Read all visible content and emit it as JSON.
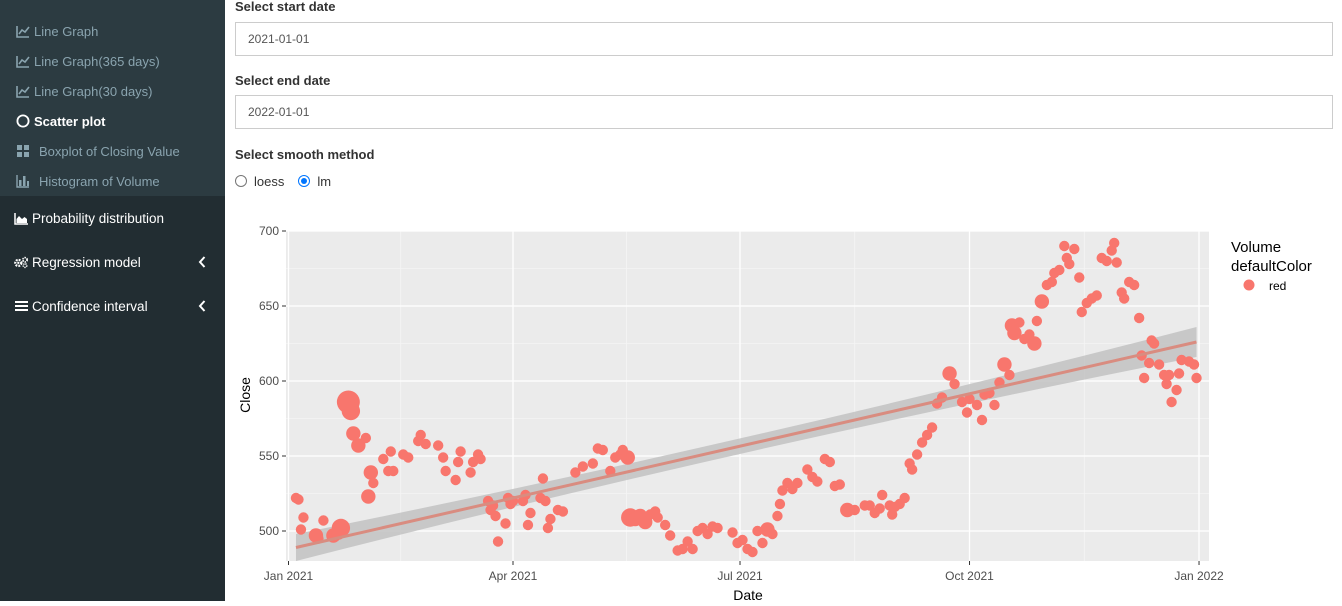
{
  "sidebar": {
    "submenu": [
      {
        "label": "Line Graph",
        "icon": "line-chart-icon"
      },
      {
        "label": "Line Graph(365 days)",
        "icon": "line-chart-icon"
      },
      {
        "label": "Line Graph(30 days)",
        "icon": "line-chart-icon"
      },
      {
        "label": "Scatter plot",
        "icon": "circle-icon",
        "active": true
      },
      {
        "label": "Boxplot of Closing Value",
        "icon": "grid-icon"
      },
      {
        "label": "Histogram of Volume",
        "icon": "bar-chart-icon"
      }
    ],
    "menu": [
      {
        "label": "Probability distribution",
        "icon": "area-chart-icon"
      },
      {
        "label": "Regression model",
        "icon": "cogs-icon"
      },
      {
        "label": "Confidence interval",
        "icon": "bars-icon"
      }
    ]
  },
  "form": {
    "start_label": "Select start date",
    "start_value": "2021-01-01",
    "end_label": "Select end date",
    "end_value": "2022-01-01",
    "smooth_label": "Select smooth method",
    "options": [
      "loess",
      "lm"
    ],
    "selected": "lm"
  },
  "colors": {
    "sidebar": "#222d32",
    "submenu": "#2c3b41",
    "point": "#f8766d",
    "fit": "#d98c80",
    "band": "#c0c0c0",
    "panel": "#ebebeb"
  },
  "chart_data": {
    "type": "scatter",
    "xlabel": "Date",
    "ylabel": "Close",
    "xlim": [
      "2020-12-31",
      "2022-01-05"
    ],
    "ylim": [
      480,
      700
    ],
    "x_ticks": [
      "2021-01-01",
      "2021-04-01",
      "2021-07-01",
      "2021-10-01",
      "2022-01-01"
    ],
    "x_tick_labels": [
      "Jan 2021",
      "Apr 2021",
      "Jul 2021",
      "Oct 2021",
      "Jan 2022"
    ],
    "y_ticks": [
      500,
      550,
      600,
      650,
      700
    ],
    "legend": {
      "title": "Volume\ndefaultColor",
      "entries": [
        "red"
      ],
      "position": "right"
    },
    "smooth": {
      "method": "lm",
      "start": [
        "2021-01-04",
        489
      ],
      "end": [
        "2021-12-31",
        626
      ],
      "band_start": 9,
      "band_mid": 4,
      "band_end": 10
    },
    "series": [
      {
        "points": [
          [
            "2021-01-04",
            522,
            1
          ],
          [
            "2021-01-05",
            521,
            1
          ],
          [
            "2021-01-06",
            501,
            1
          ],
          [
            "2021-01-07",
            509,
            1
          ],
          [
            "2021-01-12",
            497,
            2
          ],
          [
            "2021-01-13",
            495,
            1
          ],
          [
            "2021-01-15",
            507,
            1
          ],
          [
            "2021-01-19",
            497,
            2
          ],
          [
            "2021-01-21",
            499,
            2
          ],
          [
            "2021-01-22",
            502,
            3
          ],
          [
            "2021-01-25",
            586,
            4
          ],
          [
            "2021-01-26",
            580,
            3
          ],
          [
            "2021-01-27",
            565,
            2
          ],
          [
            "2021-01-29",
            557,
            2
          ],
          [
            "2021-02-01",
            562,
            1
          ],
          [
            "2021-02-02",
            523,
            2
          ],
          [
            "2021-02-03",
            539,
            2
          ],
          [
            "2021-02-04",
            532,
            1
          ],
          [
            "2021-02-08",
            548,
            1
          ],
          [
            "2021-02-10",
            540,
            1
          ],
          [
            "2021-02-11",
            553,
            1
          ],
          [
            "2021-02-12",
            540,
            1
          ],
          [
            "2021-02-16",
            551,
            1
          ],
          [
            "2021-02-18",
            549,
            1
          ],
          [
            "2021-02-22",
            560,
            1
          ],
          [
            "2021-02-23",
            564,
            1
          ],
          [
            "2021-02-25",
            558,
            1
          ],
          [
            "2021-03-02",
            557,
            1
          ],
          [
            "2021-03-04",
            549,
            1
          ],
          [
            "2021-03-05",
            540,
            1
          ],
          [
            "2021-03-09",
            534,
            1
          ],
          [
            "2021-03-10",
            546,
            1
          ],
          [
            "2021-03-11",
            553,
            1
          ],
          [
            "2021-03-15",
            539,
            1
          ],
          [
            "2021-03-16",
            546,
            1
          ],
          [
            "2021-03-18",
            551,
            1
          ],
          [
            "2021-03-19",
            548,
            1
          ],
          [
            "2021-03-22",
            520,
            1
          ],
          [
            "2021-03-23",
            514,
            1
          ],
          [
            "2021-03-24",
            517,
            1
          ],
          [
            "2021-03-25",
            510,
            1
          ],
          [
            "2021-03-26",
            493,
            1
          ],
          [
            "2021-03-29",
            505,
            1
          ],
          [
            "2021-03-30",
            522,
            1
          ],
          [
            "2021-03-31",
            518,
            1
          ],
          [
            "2021-04-01",
            520,
            1
          ],
          [
            "2021-04-05",
            520,
            1
          ],
          [
            "2021-04-06",
            524,
            1
          ],
          [
            "2021-04-07",
            504,
            1
          ],
          [
            "2021-04-08",
            512,
            1
          ],
          [
            "2021-04-12",
            522,
            1
          ],
          [
            "2021-04-13",
            535,
            1
          ],
          [
            "2021-04-14",
            520,
            1
          ],
          [
            "2021-04-15",
            502,
            1
          ],
          [
            "2021-04-16",
            508,
            1
          ],
          [
            "2021-04-19",
            514,
            1
          ],
          [
            "2021-04-21",
            513,
            1
          ],
          [
            "2021-04-26",
            539,
            1
          ],
          [
            "2021-04-29",
            543,
            1
          ],
          [
            "2021-05-03",
            545,
            1
          ],
          [
            "2021-05-05",
            555,
            1
          ],
          [
            "2021-05-07",
            554,
            1
          ],
          [
            "2021-05-10",
            540,
            1
          ],
          [
            "2021-05-12",
            549,
            1
          ],
          [
            "2021-05-14",
            551,
            1
          ],
          [
            "2021-05-15",
            554,
            1
          ],
          [
            "2021-05-17",
            549,
            2
          ],
          [
            "2021-05-18",
            509,
            3
          ],
          [
            "2021-05-20",
            508,
            2
          ],
          [
            "2021-05-22",
            510,
            2
          ],
          [
            "2021-05-24",
            506,
            2
          ],
          [
            "2021-05-26",
            511,
            1
          ],
          [
            "2021-05-28",
            513,
            1
          ],
          [
            "2021-05-29",
            509,
            1
          ],
          [
            "2021-06-01",
            504,
            1
          ],
          [
            "2021-06-03",
            497,
            1
          ],
          [
            "2021-06-06",
            487,
            1
          ],
          [
            "2021-06-08",
            488,
            1
          ],
          [
            "2021-06-10",
            493,
            1
          ],
          [
            "2021-06-12",
            488,
            1
          ],
          [
            "2021-06-14",
            500,
            1
          ],
          [
            "2021-06-16",
            502,
            1
          ],
          [
            "2021-06-18",
            498,
            1
          ],
          [
            "2021-06-20",
            503,
            1
          ],
          [
            "2021-06-22",
            502,
            1
          ],
          [
            "2021-06-28",
            499,
            1
          ],
          [
            "2021-06-30",
            492,
            1
          ],
          [
            "2021-07-02",
            494,
            1
          ],
          [
            "2021-07-04",
            488,
            1
          ],
          [
            "2021-07-06",
            486,
            1
          ],
          [
            "2021-07-08",
            500,
            1
          ],
          [
            "2021-07-10",
            492,
            1
          ],
          [
            "2021-07-12",
            501,
            2
          ],
          [
            "2021-07-14",
            498,
            1
          ],
          [
            "2021-07-16",
            510,
            1
          ],
          [
            "2021-07-17",
            518,
            1
          ],
          [
            "2021-07-18",
            527,
            1
          ],
          [
            "2021-07-20",
            532,
            1
          ],
          [
            "2021-07-22",
            528,
            1
          ],
          [
            "2021-07-24",
            532,
            1
          ],
          [
            "2021-07-28",
            541,
            1
          ],
          [
            "2021-07-30",
            536,
            1
          ],
          [
            "2021-08-01",
            533,
            1
          ],
          [
            "2021-08-04",
            548,
            1
          ],
          [
            "2021-08-06",
            546,
            1
          ],
          [
            "2021-08-08",
            530,
            1
          ],
          [
            "2021-08-10",
            531,
            1
          ],
          [
            "2021-08-13",
            514,
            2
          ],
          [
            "2021-08-16",
            514,
            1
          ],
          [
            "2021-08-20",
            517,
            1
          ],
          [
            "2021-08-22",
            517,
            1
          ],
          [
            "2021-08-24",
            512,
            1
          ],
          [
            "2021-08-26",
            515,
            1
          ],
          [
            "2021-08-27",
            524,
            1
          ],
          [
            "2021-08-30",
            517,
            1
          ],
          [
            "2021-08-31",
            511,
            1
          ],
          [
            "2021-09-01",
            516,
            1
          ],
          [
            "2021-09-03",
            518,
            1
          ],
          [
            "2021-09-05",
            522,
            1
          ],
          [
            "2021-09-07",
            545,
            1
          ],
          [
            "2021-09-08",
            541,
            1
          ],
          [
            "2021-09-10",
            551,
            1
          ],
          [
            "2021-09-12",
            559,
            1
          ],
          [
            "2021-09-14",
            564,
            1
          ],
          [
            "2021-09-16",
            569,
            1
          ],
          [
            "2021-09-18",
            585,
            1
          ],
          [
            "2021-09-20",
            589,
            1
          ],
          [
            "2021-09-23",
            605,
            2
          ],
          [
            "2021-09-25",
            598,
            1
          ],
          [
            "2021-09-28",
            586,
            1
          ],
          [
            "2021-09-30",
            579,
            1
          ],
          [
            "2021-10-01",
            588,
            1
          ],
          [
            "2021-10-04",
            584,
            1
          ],
          [
            "2021-10-06",
            574,
            1
          ],
          [
            "2021-10-07",
            591,
            1
          ],
          [
            "2021-10-09",
            592,
            1
          ],
          [
            "2021-10-11",
            584,
            1
          ],
          [
            "2021-10-13",
            599,
            1
          ],
          [
            "2021-10-15",
            611,
            2
          ],
          [
            "2021-10-17",
            604,
            1
          ],
          [
            "2021-10-18",
            637,
            2
          ],
          [
            "2021-10-19",
            632,
            2
          ],
          [
            "2021-10-21",
            639,
            1
          ],
          [
            "2021-10-23",
            628,
            1
          ],
          [
            "2021-10-25",
            631,
            1
          ],
          [
            "2021-10-27",
            625,
            2
          ],
          [
            "2021-10-28",
            640,
            1
          ],
          [
            "2021-10-30",
            653,
            2
          ],
          [
            "2021-11-01",
            664,
            1
          ],
          [
            "2021-11-03",
            666,
            1
          ],
          [
            "2021-11-04",
            672,
            1
          ],
          [
            "2021-11-06",
            674,
            1
          ],
          [
            "2021-11-08",
            690,
            1
          ],
          [
            "2021-11-09",
            682,
            1
          ],
          [
            "2021-11-10",
            678,
            1
          ],
          [
            "2021-11-12",
            688,
            1
          ],
          [
            "2021-11-14",
            669,
            1
          ],
          [
            "2021-11-15",
            646,
            1
          ],
          [
            "2021-11-17",
            652,
            1
          ],
          [
            "2021-11-19",
            655,
            1
          ],
          [
            "2021-11-21",
            657,
            1
          ],
          [
            "2021-11-23",
            682,
            1
          ],
          [
            "2021-11-25",
            680,
            1
          ],
          [
            "2021-11-27",
            687,
            1
          ],
          [
            "2021-11-28",
            692,
            1
          ],
          [
            "2021-11-29",
            679,
            1
          ],
          [
            "2021-12-01",
            659,
            1
          ],
          [
            "2021-12-02",
            655,
            1
          ],
          [
            "2021-12-04",
            666,
            1
          ],
          [
            "2021-12-06",
            664,
            1
          ],
          [
            "2021-12-08",
            642,
            1
          ],
          [
            "2021-12-09",
            617,
            1
          ],
          [
            "2021-12-10",
            602,
            1
          ],
          [
            "2021-12-12",
            612,
            1
          ],
          [
            "2021-12-13",
            627,
            1
          ],
          [
            "2021-12-14",
            625,
            1
          ],
          [
            "2021-12-16",
            611,
            1
          ],
          [
            "2021-12-18",
            604,
            1
          ],
          [
            "2021-12-19",
            598,
            1
          ],
          [
            "2021-12-20",
            604,
            1
          ],
          [
            "2021-12-21",
            586,
            1
          ],
          [
            "2021-12-23",
            594,
            1
          ],
          [
            "2021-12-24",
            605,
            1
          ],
          [
            "2021-12-25",
            614,
            1
          ],
          [
            "2021-12-28",
            613,
            1
          ],
          [
            "2021-12-30",
            611,
            1
          ],
          [
            "2021-12-31",
            602,
            1
          ]
        ]
      }
    ]
  }
}
